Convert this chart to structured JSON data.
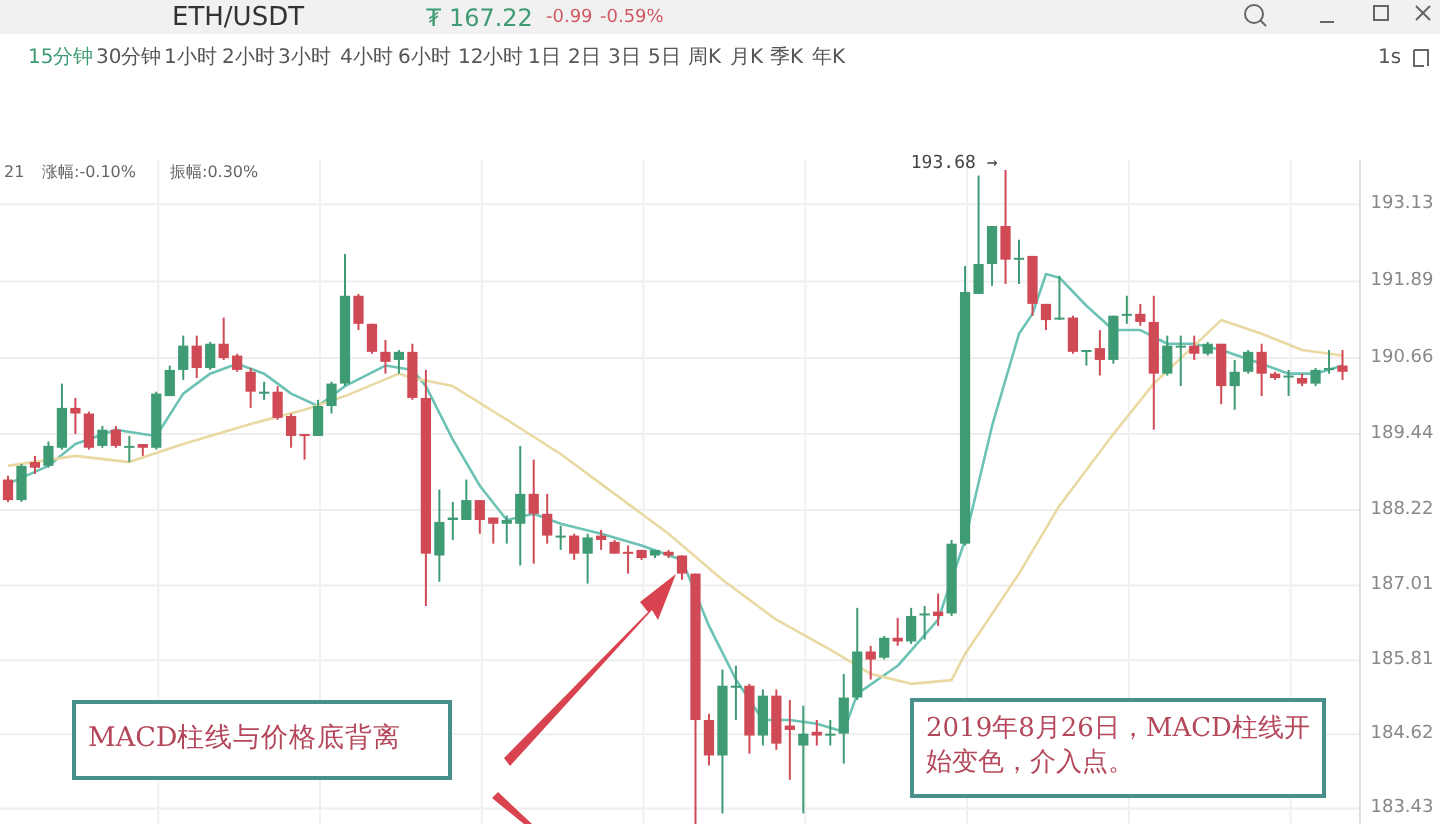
{
  "chart_data": {
    "type": "candlestick",
    "title": "ETH/USDT",
    "categories": [
      null,
      null,
      null,
      null,
      null,
      null,
      null,
      null,
      null,
      null,
      null,
      null,
      null,
      null,
      null,
      null,
      null,
      null,
      null,
      null,
      null,
      null,
      null,
      null,
      null,
      null,
      null,
      null,
      null,
      null,
      null,
      null,
      null,
      null,
      null,
      null,
      null,
      null,
      null,
      null,
      null,
      null,
      null,
      null,
      null,
      null,
      null,
      null,
      null,
      null,
      null,
      null,
      null,
      null,
      null,
      null,
      null,
      null,
      null,
      null,
      null,
      null,
      null,
      null,
      null,
      null,
      null,
      null,
      null,
      null,
      null,
      null,
      null,
      null,
      null,
      null,
      null,
      null,
      null,
      null,
      null,
      null,
      null,
      null,
      null,
      null,
      null,
      null,
      null,
      null,
      null,
      null,
      null,
      null,
      null,
      null,
      null,
      null,
      null,
      null
    ],
    "ohlc": [
      [
        188.71,
        188.77,
        188.35,
        188.38
      ],
      [
        188.38,
        188.96,
        188.35,
        188.93
      ],
      [
        188.99,
        189.09,
        188.8,
        188.9
      ],
      [
        188.93,
        189.32,
        188.9,
        189.25
      ],
      [
        189.22,
        190.25,
        189.19,
        189.86
      ],
      [
        189.86,
        190.02,
        189.44,
        189.77
      ],
      [
        189.77,
        189.8,
        189.19,
        189.22
      ],
      [
        189.25,
        189.57,
        189.22,
        189.51
      ],
      [
        189.51,
        189.57,
        189.22,
        189.25
      ],
      [
        189.25,
        189.41,
        188.99,
        189.25
      ],
      [
        189.28,
        189.28,
        189.09,
        189.22
      ],
      [
        189.22,
        190.12,
        189.19,
        190.09
      ],
      [
        190.05,
        190.54,
        190.05,
        190.47
      ],
      [
        190.47,
        191.02,
        190.31,
        190.86
      ],
      [
        190.86,
        191.02,
        190.34,
        190.5
      ],
      [
        190.5,
        190.92,
        190.47,
        190.89
      ],
      [
        190.89,
        191.31,
        190.63,
        190.66
      ],
      [
        190.7,
        190.73,
        190.44,
        190.47
      ],
      [
        190.44,
        190.5,
        189.86,
        190.12
      ],
      [
        190.12,
        190.28,
        189.99,
        190.12
      ],
      [
        190.12,
        190.21,
        189.67,
        189.7
      ],
      [
        189.73,
        189.77,
        189.22,
        189.41
      ],
      [
        189.44,
        189.44,
        189.03,
        189.41
      ],
      [
        189.41,
        189.99,
        189.41,
        189.89
      ],
      [
        189.89,
        190.28,
        189.77,
        190.25
      ],
      [
        190.25,
        192.33,
        190.21,
        191.66
      ],
      [
        191.66,
        191.69,
        191.11,
        191.21
      ],
      [
        191.21,
        191.21,
        190.73,
        190.76
      ],
      [
        190.76,
        190.95,
        190.41,
        190.6
      ],
      [
        190.63,
        190.79,
        190.41,
        190.76
      ],
      [
        190.76,
        190.89,
        189.99,
        190.02
      ],
      [
        190.02,
        190.47,
        186.68,
        187.52
      ],
      [
        187.49,
        188.55,
        187.07,
        188.03
      ],
      [
        188.06,
        188.35,
        187.74,
        188.1
      ],
      [
        188.06,
        188.71,
        188.06,
        188.38
      ],
      [
        188.38,
        188.38,
        187.84,
        188.06
      ],
      [
        188.1,
        188.1,
        187.68,
        188.0
      ],
      [
        188.0,
        188.13,
        187.68,
        188.06
      ],
      [
        188.0,
        189.25,
        187.33,
        188.48
      ],
      [
        188.48,
        189.03,
        187.36,
        188.16
      ],
      [
        188.16,
        188.48,
        187.68,
        187.81
      ],
      [
        187.81,
        187.97,
        187.58,
        187.81
      ],
      [
        187.81,
        187.84,
        187.42,
        187.52
      ],
      [
        187.52,
        187.84,
        187.04,
        187.78
      ],
      [
        187.81,
        187.9,
        187.58,
        187.74
      ],
      [
        187.71,
        187.74,
        187.52,
        187.52
      ],
      [
        187.55,
        187.65,
        187.2,
        187.52
      ],
      [
        187.58,
        187.58,
        187.42,
        187.45
      ],
      [
        187.49,
        187.58,
        187.45,
        187.58
      ],
      [
        187.55,
        187.58,
        187.45,
        187.49
      ],
      [
        187.49,
        187.49,
        187.1,
        187.2
      ],
      [
        187.2,
        187.2,
        183.18,
        184.85
      ],
      [
        184.85,
        184.95,
        184.12,
        184.28
      ],
      [
        184.28,
        185.66,
        183.35,
        185.4
      ],
      [
        185.4,
        185.72,
        184.85,
        185.4
      ],
      [
        185.4,
        185.43,
        184.31,
        184.6
      ],
      [
        184.6,
        185.34,
        184.44,
        185.24
      ],
      [
        185.24,
        185.34,
        184.37,
        184.47
      ],
      [
        184.76,
        185.17,
        183.89,
        184.69
      ],
      [
        184.44,
        185.08,
        183.35,
        184.63
      ],
      [
        184.66,
        184.85,
        184.44,
        184.6
      ],
      [
        184.6,
        184.85,
        184.44,
        184.63
      ],
      [
        184.63,
        185.59,
        184.15,
        185.21
      ],
      [
        185.21,
        186.65,
        185.17,
        185.95
      ],
      [
        185.95,
        186.04,
        185.5,
        185.82
      ],
      [
        185.85,
        186.2,
        185.82,
        186.17
      ],
      [
        186.17,
        186.49,
        186.04,
        186.11
      ],
      [
        186.11,
        186.65,
        186.07,
        186.52
      ],
      [
        186.56,
        186.68,
        186.14,
        186.56
      ],
      [
        186.59,
        186.88,
        186.36,
        186.52
      ],
      [
        186.56,
        187.74,
        186.52,
        187.68
      ],
      [
        187.68,
        192.14,
        187.65,
        191.72
      ],
      [
        191.69,
        193.59,
        191.69,
        192.17
      ],
      [
        192.17,
        192.78,
        191.82,
        192.78
      ],
      [
        192.78,
        193.68,
        191.85,
        192.24
      ],
      [
        192.24,
        192.56,
        191.85,
        192.27
      ],
      [
        192.3,
        192.3,
        191.34,
        191.53
      ],
      [
        191.53,
        191.53,
        191.11,
        191.27
      ],
      [
        191.31,
        191.98,
        191.27,
        191.31
      ],
      [
        191.31,
        191.34,
        190.73,
        190.76
      ],
      [
        190.79,
        190.79,
        190.54,
        190.79
      ],
      [
        190.82,
        191.11,
        190.38,
        190.63
      ],
      [
        190.63,
        191.34,
        190.57,
        191.34
      ],
      [
        191.37,
        191.66,
        191.21,
        191.37
      ],
      [
        191.37,
        191.53,
        191.18,
        191.24
      ],
      [
        191.24,
        191.66,
        189.51,
        190.41
      ],
      [
        190.41,
        191.02,
        190.38,
        190.86
      ],
      [
        190.86,
        191.02,
        190.21,
        190.86
      ],
      [
        190.86,
        191.02,
        190.63,
        190.73
      ],
      [
        190.73,
        190.92,
        190.7,
        190.89
      ],
      [
        190.89,
        190.89,
        189.92,
        190.21
      ],
      [
        190.21,
        190.63,
        189.83,
        190.44
      ],
      [
        190.44,
        190.79,
        190.41,
        190.76
      ],
      [
        190.76,
        190.89,
        190.05,
        190.41
      ],
      [
        190.41,
        190.44,
        190.31,
        190.34
      ],
      [
        190.38,
        190.47,
        190.05,
        190.38
      ],
      [
        190.34,
        190.41,
        190.21,
        190.25
      ],
      [
        190.25,
        190.5,
        190.21,
        190.47
      ],
      [
        190.5,
        190.79,
        190.41,
        190.5
      ],
      [
        190.54,
        190.79,
        190.31,
        190.44
      ]
    ],
    "series": [
      {
        "type": "line",
        "color": "#6cc3b5",
        "values": [
          188.64,
          null,
          null,
          188.93,
          null,
          189.28,
          null,
          null,
          189.51,
          null,
          189.44,
          189.41,
          null,
          190.09,
          null,
          190.41,
          null,
          190.57,
          null,
          190.41,
          null,
          190.09,
          null,
          189.89,
          null,
          190.21,
          null,
          null,
          190.54,
          null,
          190.47,
          190.21,
          null,
          189.35,
          null,
          188.61,
          null,
          188.06,
          null,
          188.16,
          null,
          188.0,
          null,
          null,
          187.84,
          null,
          null,
          187.65,
          null,
          null,
          187.42,
          null,
          186.36,
          null,
          185.5,
          null,
          184.85,
          null,
          184.85,
          null,
          184.79,
          null,
          184.66,
          185.27,
          null,
          null,
          185.72,
          null,
          null,
          186.46,
          null,
          187.74,
          null,
          189.57,
          null,
          191.05,
          191.37,
          192.01,
          191.95,
          null,
          191.5,
          null,
          191.11,
          null,
          191.11,
          null,
          190.89,
          null,
          190.89,
          null,
          190.79,
          null,
          null,
          190.57,
          null,
          190.41,
          null,
          190.41,
          null,
          190.54
        ]
      },
      {
        "type": "line",
        "color": "#e9d9a2",
        "values": [
          188.93,
          null,
          null,
          null,
          null,
          189.09,
          null,
          null,
          null,
          188.99,
          null,
          null,
          null,
          189.28,
          null,
          null,
          null,
          null,
          189.6,
          null,
          null,
          null,
          189.83,
          null,
          null,
          190.05,
          null,
          null,
          null,
          190.41,
          190.34,
          null,
          null,
          190.21,
          null,
          null,
          null,
          189.67,
          null,
          null,
          null,
          189.12,
          null,
          null,
          null,
          188.48,
          null,
          null,
          null,
          187.84,
          null,
          null,
          null,
          187.1,
          null,
          null,
          null,
          186.46,
          null,
          null,
          null,
          185.98,
          null,
          null,
          185.59,
          null,
          null,
          185.43,
          null,
          null,
          185.49,
          185.91,
          null,
          null,
          null,
          187.2,
          null,
          null,
          188.29,
          null,
          null,
          null,
          189.44,
          null,
          null,
          190.25,
          null,
          null,
          190.86,
          null,
          191.27,
          null,
          null,
          191.05,
          null,
          null,
          190.79,
          null,
          null,
          190.7
        ]
      }
    ],
    "ylim": [
      183.18,
      193.84
    ],
    "yticks": [
      183.43,
      184.62,
      185.81,
      187.01,
      188.22,
      189.44,
      190.66,
      191.89,
      193.13
    ],
    "tick_labels": "y",
    "grid": true,
    "annotations": [
      "₮ 167.22",
      "-0.99",
      "-0.59%",
      "15分钟",
      "30分钟",
      "1小时",
      "2小时",
      "3小时",
      "4小时",
      "6小时",
      "12小时",
      "1日",
      "2日",
      "3日",
      "5日",
      "周K",
      "月K",
      "季K",
      "年K",
      "1s",
      "21",
      "涨幅:-0.10%",
      "振幅:0.30%",
      "193.68 →",
      "MACD柱线与价格底背离",
      "2019年8月26日，MACD柱线开始变色，介入点。"
    ]
  }
}
